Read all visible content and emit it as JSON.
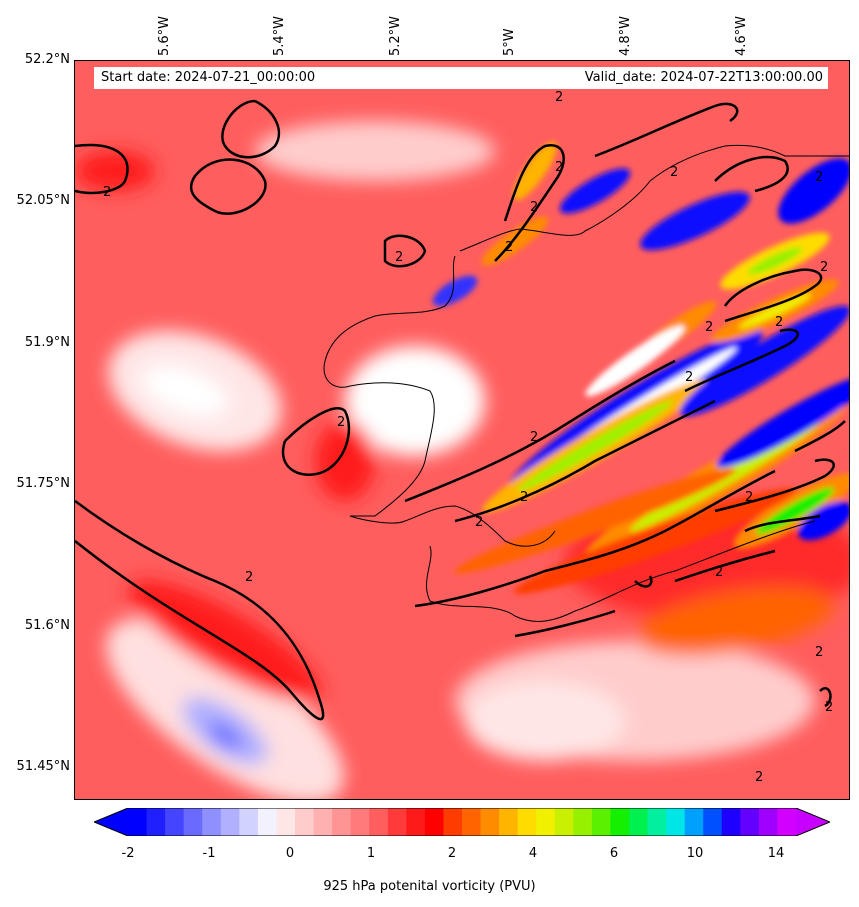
{
  "header": {
    "start_date": "Start date: 2024-07-21_00:00:00",
    "valid_date": "Valid_date: 2024-07-22T13:00:00.00"
  },
  "axes": {
    "longitude_labels": [
      "5.6°W",
      "5.4°W",
      "5.2°W",
      "5°W",
      "4.8°W",
      "4.6°W"
    ],
    "latitude_labels": [
      "52.2°N",
      "52.05°N",
      "51.9°N",
      "51.75°N",
      "51.6°N",
      "51.45°N"
    ]
  },
  "contour_label": "2",
  "colorbar": {
    "title": "925 hPa potenital vorticity (PVU)",
    "tick_labels": [
      "-2",
      "-1",
      "0",
      "1",
      "2",
      "4",
      "6",
      "10",
      "14"
    ],
    "colors": [
      "#0000ff",
      "#2020ff",
      "#4545ff",
      "#6a6aff",
      "#8f8fff",
      "#b0b0ff",
      "#d2d2ff",
      "#f2f2ff",
      "#ffe6e6",
      "#ffcccc",
      "#ffb0b0",
      "#ff9494",
      "#ff7a7a",
      "#ff5e5e",
      "#ff3a3a",
      "#ff1a1a",
      "#ff0000",
      "#ff3c00",
      "#ff6400",
      "#ff8c00",
      "#ffb400",
      "#ffdc00",
      "#f0f000",
      "#c8f000",
      "#96f000",
      "#5af000",
      "#14f000",
      "#00f050",
      "#00f0a0",
      "#00e6e6",
      "#00a0ff",
      "#0050ff",
      "#1e00ff",
      "#6400ff",
      "#a000ff",
      "#d200ff"
    ],
    "extend_min_color": "#0000ff",
    "extend_max_color": "#c800ff"
  }
}
